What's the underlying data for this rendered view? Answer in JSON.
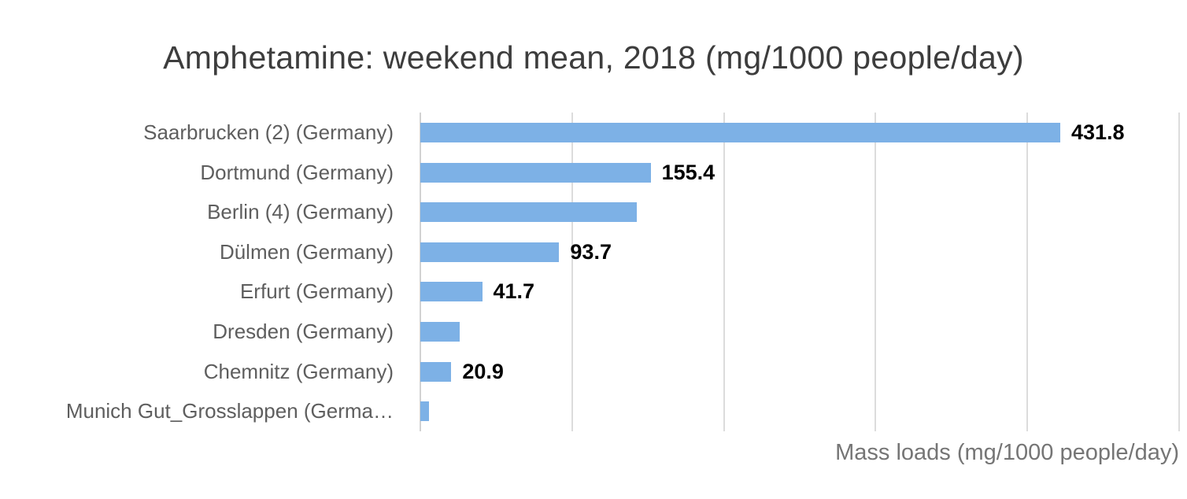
{
  "page": {
    "background": "#ffffff",
    "text_color_title": "#3d3d3d",
    "text_color_labels": "#5e5e5e",
    "text_color_axis_title": "#757575",
    "gridline_color": "#dcdcdc"
  },
  "chart_data": {
    "type": "bar",
    "orientation": "horizontal",
    "title": "Amphetamine: weekend mean, 2018 (mg/1000 people/day)",
    "xlabel": "Mass loads (mg/1000 people/day)",
    "xlim": [
      0,
      512
    ],
    "gridline_count": 5,
    "grid_on": true,
    "legend": "none",
    "bar_color": "#7db1e6",
    "categories": [
      "Saarbrucken (2) (Germany)",
      "Dortmund (Germany)",
      "Berlin (4) (Germany)",
      "Dülmen (Germany)",
      "Erfurt (Germany)",
      "Dresden (Germany)",
      "Chemnitz (Germany)",
      "Munich Gut_Grosslappen (Germa…"
    ],
    "values": [
      431.8,
      155.4,
      146,
      93.7,
      41.7,
      26.7,
      20.9,
      5.6
    ],
    "annotations": [
      "431.8",
      "155.4",
      "",
      "93.7",
      "41.7",
      "",
      "20.9",
      ""
    ]
  }
}
